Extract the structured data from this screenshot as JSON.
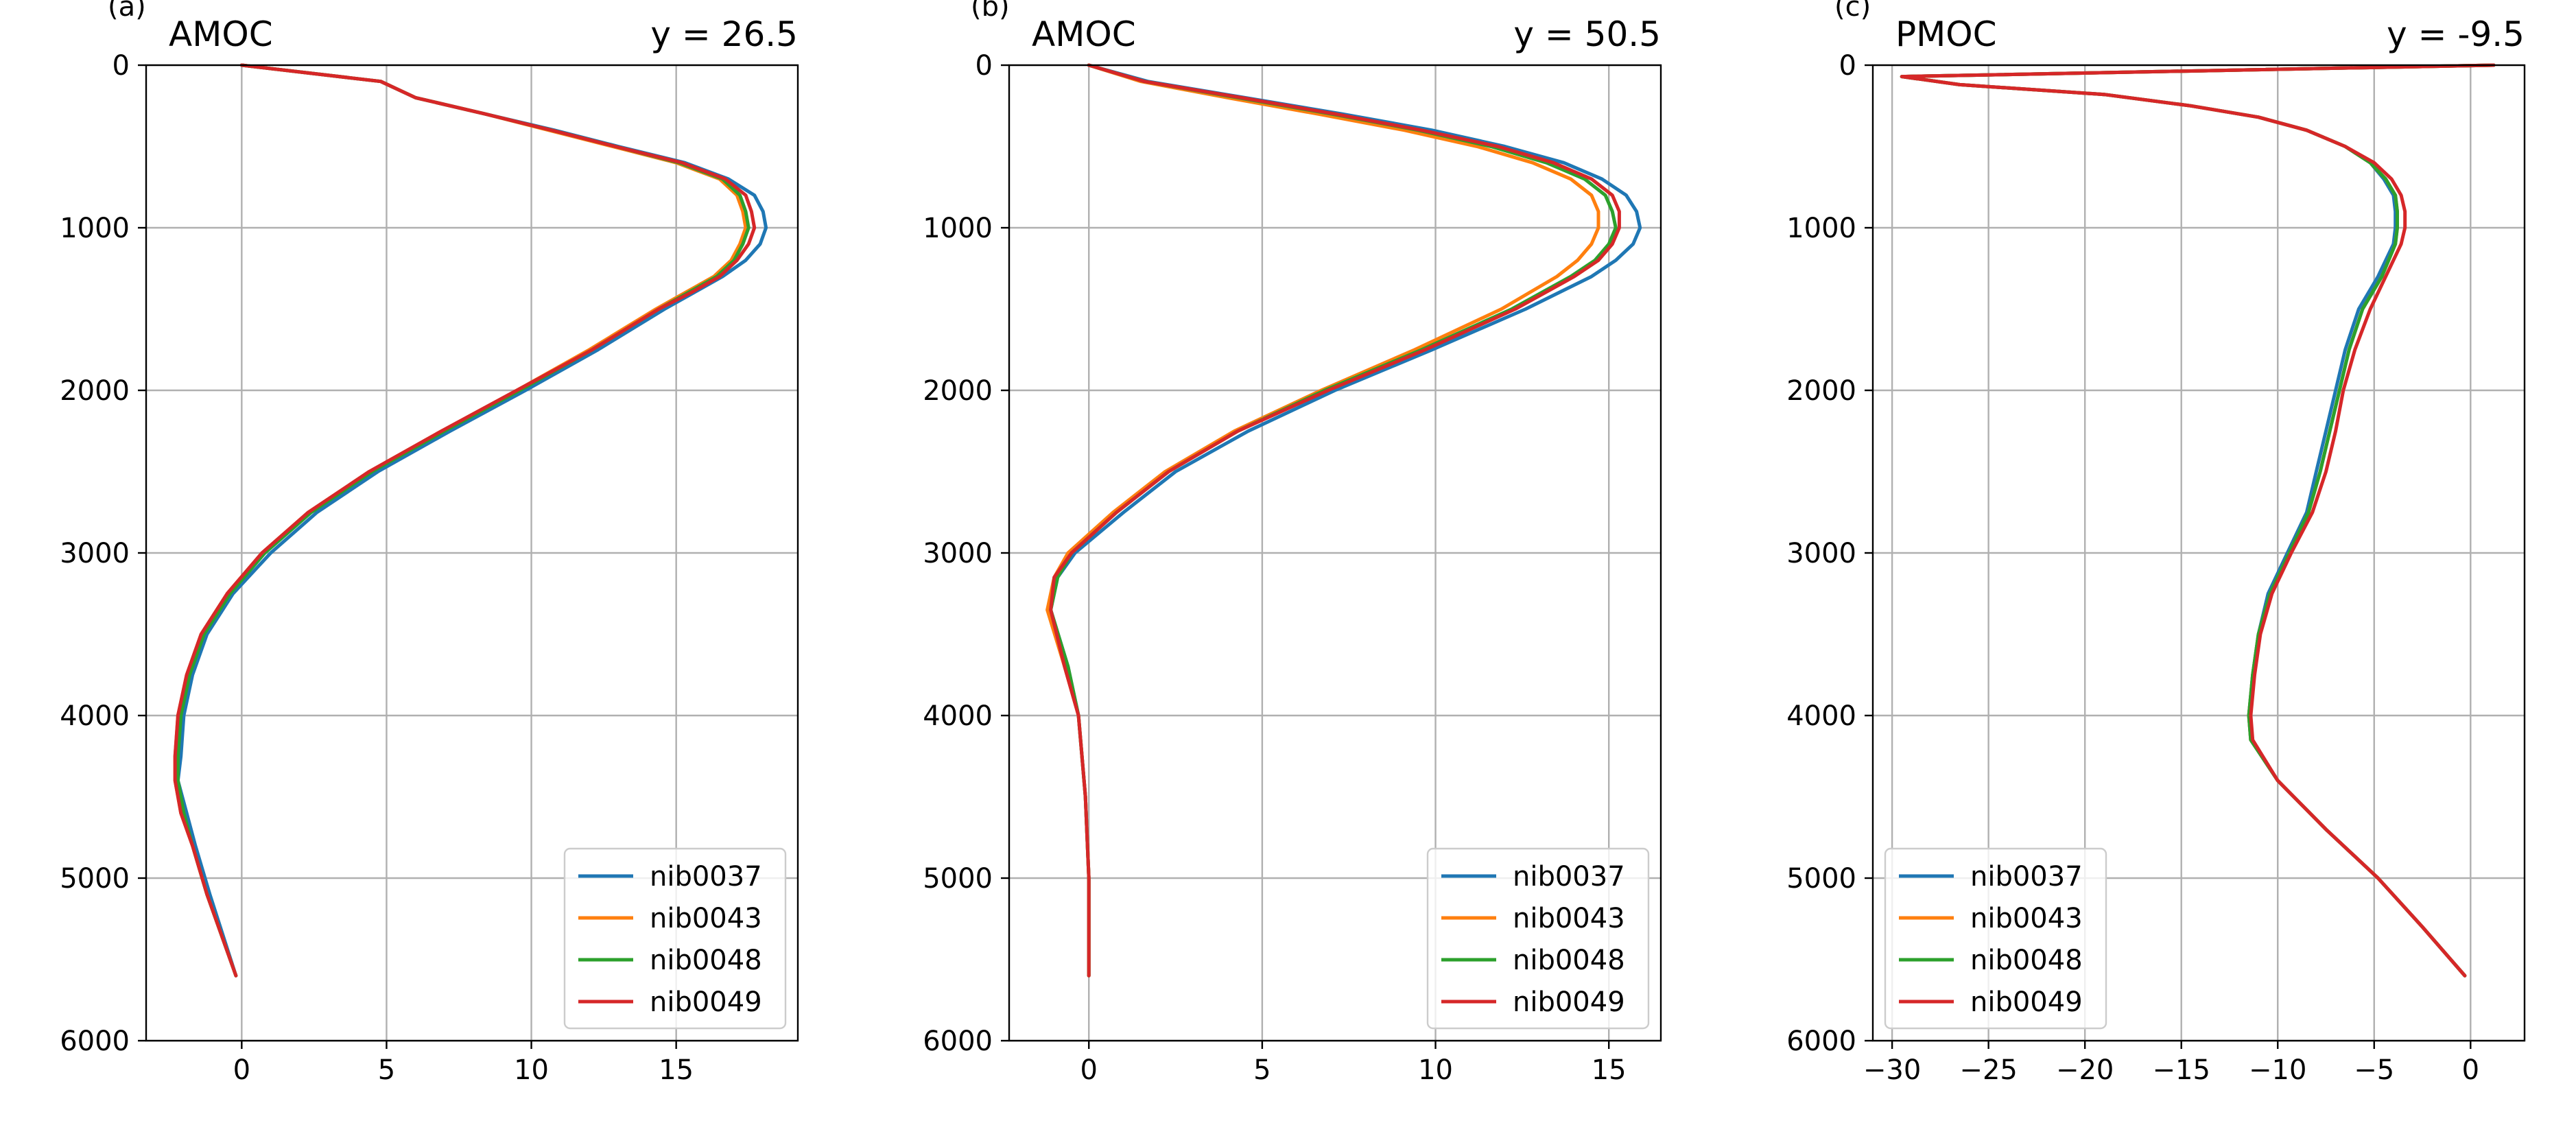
{
  "chart_data": [
    {
      "type": "line",
      "panel_label": "(a)",
      "title_left": "AMOC",
      "title_right": "y = 26.5",
      "xlim": [
        -3.3,
        19.2
      ],
      "ylim": [
        6000,
        0
      ],
      "y_inverted": true,
      "grid": true,
      "legend_placement": "lower-right",
      "xticks": [
        0,
        5,
        10,
        15
      ],
      "xtick_labels": [
        "0",
        "5",
        "10",
        "15"
      ],
      "yticks": [
        0,
        1000,
        2000,
        3000,
        4000,
        5000,
        6000
      ],
      "ytick_labels": [
        "0",
        "1000",
        "2000",
        "3000",
        "4000",
        "5000",
        "6000"
      ],
      "depth": [
        0,
        100,
        200,
        300,
        400,
        500,
        600,
        700,
        800,
        900,
        1000,
        1100,
        1200,
        1300,
        1400,
        1500,
        1750,
        2000,
        2250,
        2500,
        2750,
        3000,
        3250,
        3500,
        3750,
        4000,
        4250,
        4400,
        4600,
        4800,
        5100,
        5600
      ],
      "series": [
        {
          "name": "nib0037",
          "color": "#1f77b4",
          "values": [
            0.0,
            4.8,
            6.0,
            8.4,
            10.8,
            13.0,
            15.3,
            16.8,
            17.7,
            18.0,
            18.1,
            17.9,
            17.4,
            16.6,
            15.6,
            14.6,
            12.3,
            9.8,
            7.2,
            4.7,
            2.6,
            1.0,
            -0.3,
            -1.2,
            -1.7,
            -2.0,
            -2.1,
            -2.2,
            -1.9,
            -1.6,
            -1.1,
            -0.2
          ]
        },
        {
          "name": "nib0043",
          "color": "#ff7f0e",
          "values": [
            0.0,
            4.8,
            6.0,
            8.4,
            10.6,
            12.8,
            15.0,
            16.5,
            17.1,
            17.3,
            17.4,
            17.2,
            16.9,
            16.3,
            15.3,
            14.3,
            12.0,
            9.5,
            6.9,
            4.4,
            2.3,
            0.7,
            -0.5,
            -1.4,
            -1.9,
            -2.2,
            -2.3,
            -2.3,
            -2.1,
            -1.7,
            -1.2,
            -0.2
          ]
        },
        {
          "name": "nib0048",
          "color": "#2ca02c",
          "values": [
            0.0,
            4.8,
            6.0,
            8.4,
            10.7,
            12.9,
            15.1,
            16.6,
            17.2,
            17.4,
            17.5,
            17.3,
            17.0,
            16.4,
            15.4,
            14.4,
            12.1,
            9.6,
            7.0,
            4.5,
            2.4,
            0.8,
            -0.4,
            -1.3,
            -1.8,
            -2.1,
            -2.2,
            -2.2,
            -2.0,
            -1.7,
            -1.2,
            -0.2
          ]
        },
        {
          "name": "nib0049",
          "color": "#d62728",
          "values": [
            0.0,
            4.8,
            6.0,
            8.4,
            10.7,
            12.9,
            15.2,
            16.7,
            17.4,
            17.6,
            17.7,
            17.5,
            17.1,
            16.5,
            15.5,
            14.4,
            12.1,
            9.5,
            6.9,
            4.4,
            2.3,
            0.7,
            -0.5,
            -1.4,
            -1.9,
            -2.2,
            -2.3,
            -2.3,
            -2.1,
            -1.7,
            -1.2,
            -0.2
          ]
        }
      ]
    },
    {
      "type": "line",
      "panel_label": "(b)",
      "title_left": "AMOC",
      "title_right": "y = 50.5",
      "xlim": [
        -2.3,
        16.5
      ],
      "ylim": [
        6000,
        0
      ],
      "y_inverted": true,
      "grid": true,
      "legend_placement": "lower-right",
      "xticks": [
        0,
        5,
        10,
        15
      ],
      "xtick_labels": [
        "0",
        "5",
        "10",
        "15"
      ],
      "yticks": [
        0,
        1000,
        2000,
        3000,
        4000,
        5000,
        6000
      ],
      "ytick_labels": [
        "0",
        "1000",
        "2000",
        "3000",
        "4000",
        "5000",
        "6000"
      ],
      "depth": [
        0,
        100,
        200,
        300,
        400,
        500,
        600,
        700,
        800,
        900,
        1000,
        1100,
        1200,
        1300,
        1500,
        1750,
        2000,
        2250,
        2500,
        2750,
        3000,
        3150,
        3350,
        3700,
        4000,
        4500,
        5000,
        5600
      ],
      "series": [
        {
          "name": "nib0037",
          "color": "#1f77b4",
          "values": [
            0.0,
            1.7,
            4.5,
            7.3,
            9.9,
            12.0,
            13.7,
            14.8,
            15.5,
            15.8,
            15.9,
            15.7,
            15.2,
            14.5,
            12.6,
            9.9,
            7.1,
            4.6,
            2.5,
            1.0,
            -0.4,
            -0.9,
            -1.1,
            -0.6,
            -0.3,
            -0.1,
            0.0,
            0.0
          ]
        },
        {
          "name": "nib0043",
          "color": "#ff7f0e",
          "values": [
            0.0,
            1.5,
            4.0,
            6.6,
            9.1,
            11.2,
            12.8,
            13.9,
            14.5,
            14.7,
            14.7,
            14.5,
            14.1,
            13.5,
            11.9,
            9.4,
            6.7,
            4.2,
            2.2,
            0.7,
            -0.6,
            -1.0,
            -1.2,
            -0.7,
            -0.3,
            -0.1,
            0.0,
            0.0
          ]
        },
        {
          "name": "nib0048",
          "color": "#2ca02c",
          "values": [
            0.0,
            1.6,
            4.3,
            7.0,
            9.5,
            11.6,
            13.2,
            14.3,
            14.9,
            15.1,
            15.2,
            15.0,
            14.6,
            13.9,
            12.2,
            9.6,
            6.8,
            4.3,
            2.3,
            0.8,
            -0.5,
            -0.9,
            -1.1,
            -0.6,
            -0.3,
            -0.1,
            0.0,
            0.0
          ]
        },
        {
          "name": "nib0049",
          "color": "#d62728",
          "values": [
            0.0,
            1.6,
            4.4,
            7.1,
            9.6,
            11.8,
            13.4,
            14.5,
            15.1,
            15.3,
            15.3,
            15.1,
            14.7,
            14.0,
            12.3,
            9.7,
            6.9,
            4.3,
            2.3,
            0.8,
            -0.5,
            -1.0,
            -1.1,
            -0.7,
            -0.3,
            -0.1,
            0.0,
            0.0
          ]
        }
      ]
    },
    {
      "type": "line",
      "panel_label": "(c)",
      "title_left": "PMOC",
      "title_right": "y = -9.5",
      "xlim": [
        -31.0,
        2.8
      ],
      "ylim": [
        6000,
        0
      ],
      "y_inverted": true,
      "grid": true,
      "legend_placement": "lower-left",
      "xticks": [
        -30,
        -25,
        -20,
        -15,
        -10,
        -5,
        0
      ],
      "xtick_labels": [
        "−30",
        "−25",
        "−20",
        "−15",
        "−10",
        "−5",
        "0"
      ],
      "yticks": [
        0,
        1000,
        2000,
        3000,
        4000,
        5000,
        6000
      ],
      "ytick_labels": [
        "0",
        "1000",
        "2000",
        "3000",
        "4000",
        "5000",
        "6000"
      ],
      "depth": [
        0,
        30,
        70,
        120,
        180,
        250,
        320,
        400,
        500,
        600,
        700,
        800,
        900,
        1000,
        1100,
        1300,
        1500,
        1750,
        2000,
        2250,
        2500,
        2750,
        3000,
        3250,
        3500,
        3750,
        4000,
        4150,
        4400,
        4700,
        5000,
        5300,
        5600
      ],
      "series": [
        {
          "name": "nib0037",
          "color": "#1f77b4",
          "values": [
            1.2,
            -12.0,
            -29.5,
            -26.5,
            -19.0,
            -14.5,
            -11.0,
            -8.5,
            -6.5,
            -5.2,
            -4.5,
            -4.0,
            -3.9,
            -3.9,
            -4.0,
            -4.8,
            -5.8,
            -6.5,
            -7.0,
            -7.5,
            -8.0,
            -8.5,
            -9.5,
            -10.5,
            -11.0,
            -11.3,
            -11.5,
            -11.4,
            -10.0,
            -7.5,
            -4.8,
            -2.5,
            -0.3
          ]
        },
        {
          "name": "nib0043",
          "color": "#ff7f0e",
          "values": [
            1.2,
            -12.0,
            -29.5,
            -26.5,
            -19.0,
            -14.5,
            -11.0,
            -8.5,
            -6.5,
            -5.2,
            -4.4,
            -3.9,
            -3.8,
            -3.8,
            -3.9,
            -4.6,
            -5.6,
            -6.3,
            -6.8,
            -7.3,
            -7.8,
            -8.4,
            -9.4,
            -10.4,
            -11.0,
            -11.3,
            -11.5,
            -11.4,
            -10.0,
            -7.5,
            -4.8,
            -2.5,
            -0.3
          ]
        },
        {
          "name": "nib0048",
          "color": "#2ca02c",
          "values": [
            1.2,
            -12.0,
            -29.5,
            -26.5,
            -19.0,
            -14.5,
            -11.0,
            -8.5,
            -6.5,
            -5.2,
            -4.4,
            -3.9,
            -3.8,
            -3.8,
            -3.9,
            -4.6,
            -5.6,
            -6.3,
            -6.8,
            -7.3,
            -7.8,
            -8.4,
            -9.4,
            -10.4,
            -11.0,
            -11.3,
            -11.5,
            -11.4,
            -10.0,
            -7.5,
            -4.8,
            -2.5,
            -0.3
          ]
        },
        {
          "name": "nib0049",
          "color": "#d62728",
          "values": [
            1.2,
            -12.0,
            -29.5,
            -26.5,
            -19.0,
            -14.5,
            -11.0,
            -8.5,
            -6.5,
            -5.0,
            -4.1,
            -3.6,
            -3.4,
            -3.4,
            -3.6,
            -4.4,
            -5.2,
            -6.0,
            -6.6,
            -7.0,
            -7.5,
            -8.2,
            -9.3,
            -10.3,
            -10.9,
            -11.2,
            -11.4,
            -11.3,
            -10.0,
            -7.5,
            -4.8,
            -2.5,
            -0.3
          ]
        }
      ]
    }
  ]
}
